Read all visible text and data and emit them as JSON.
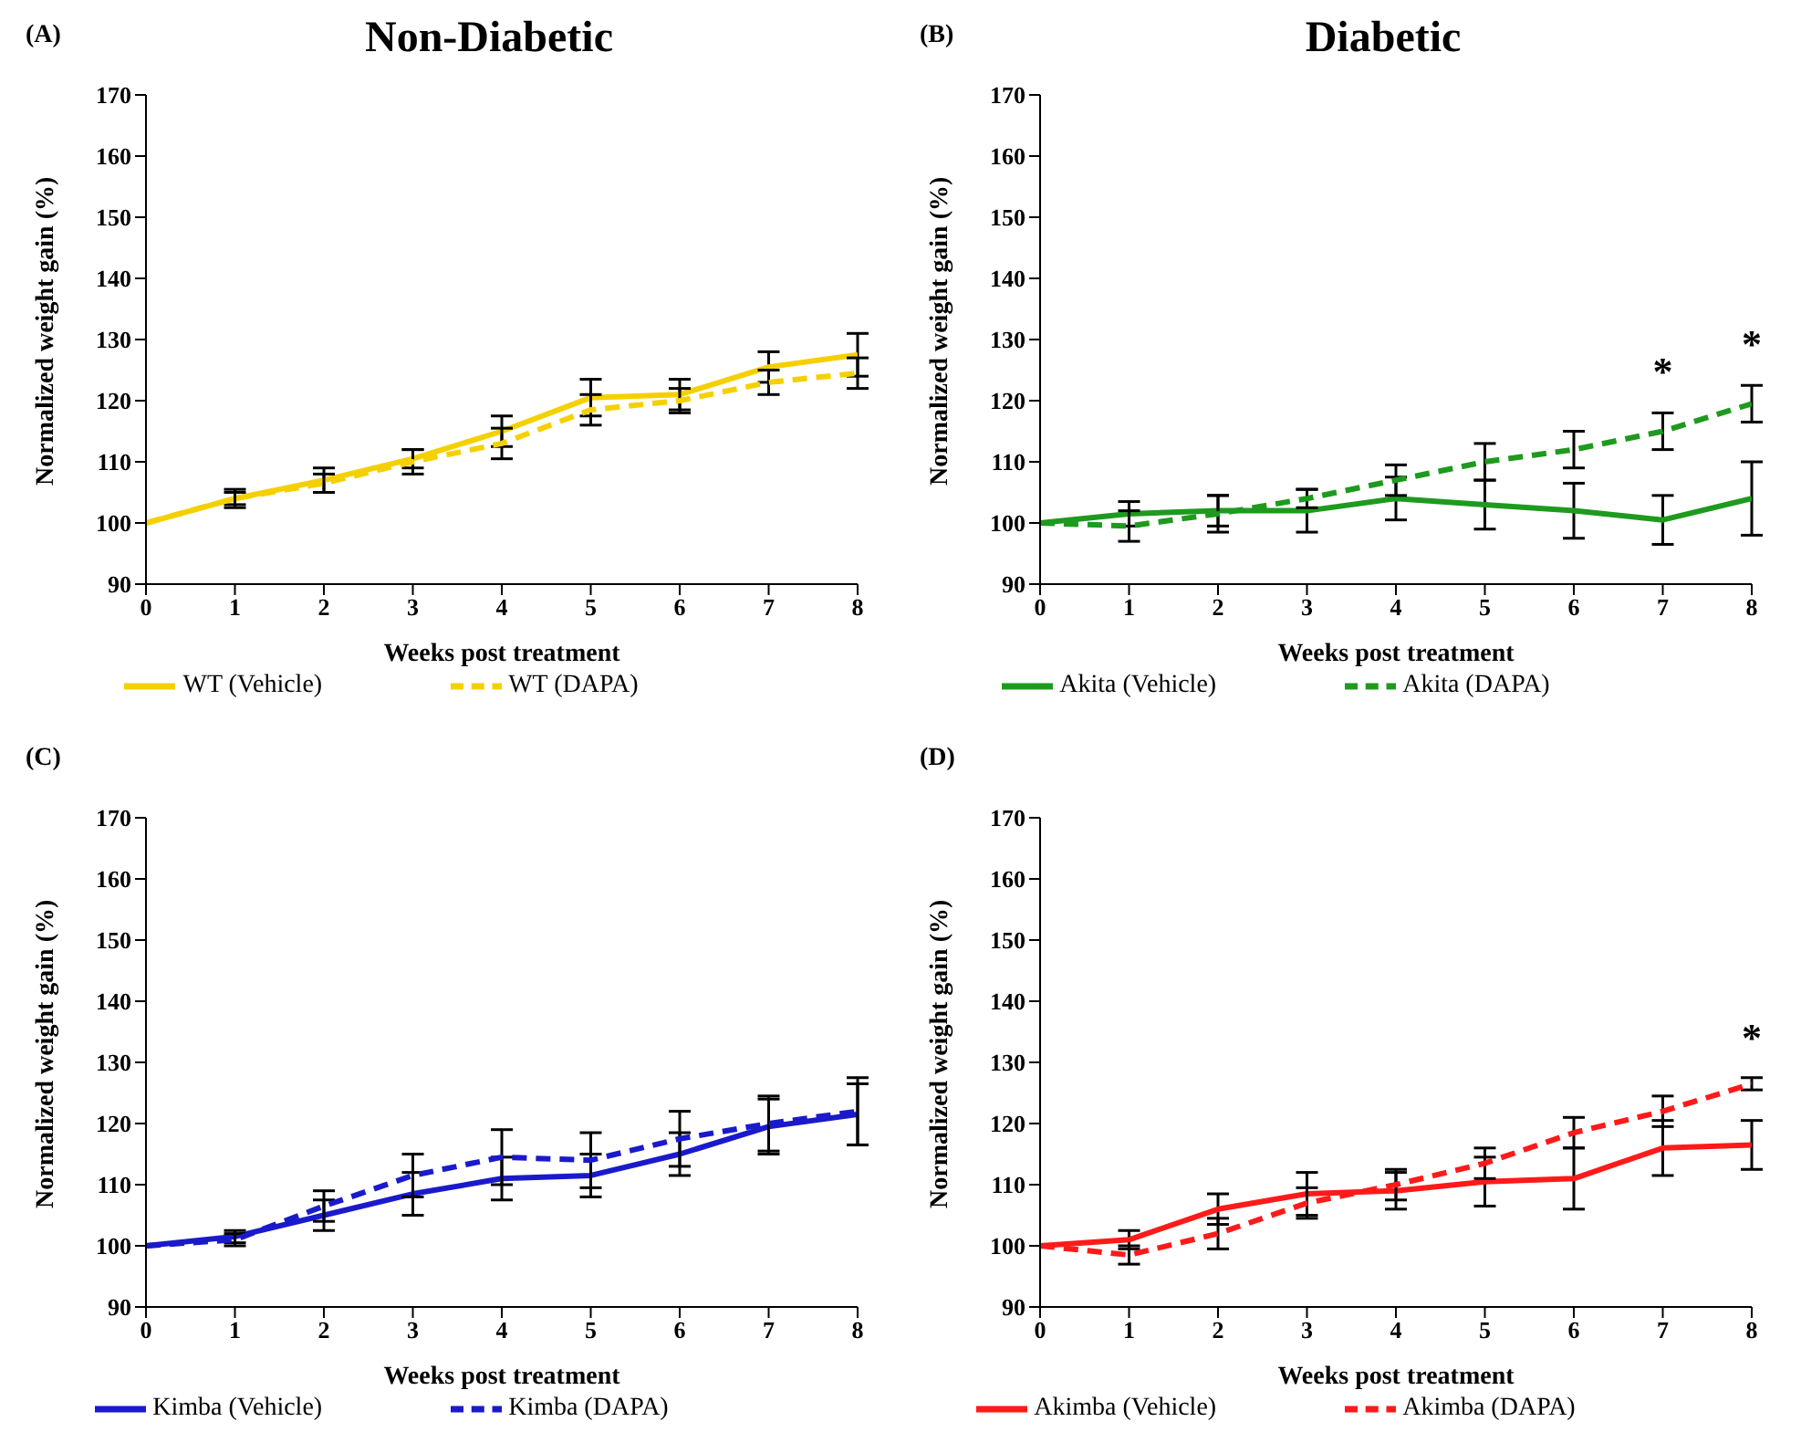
{
  "chart_data": [
    {
      "type": "line",
      "title": "Non-Diabetic",
      "annotations": [
        "(A)"
      ],
      "xlabel": "Weeks post treatment",
      "ylabel": "Normalized weight gain (%)",
      "x": [
        0,
        1,
        2,
        3,
        4,
        5,
        6,
        7,
        8
      ],
      "xlim": [
        0,
        8
      ],
      "xticks": [
        0,
        1,
        2,
        3,
        4,
        5,
        6,
        7,
        8
      ],
      "ylim": [
        90,
        170
      ],
      "yticks": [
        90,
        100,
        110,
        120,
        130,
        140,
        150,
        160,
        170
      ],
      "grid": false,
      "legend": "bottom",
      "marker": "none",
      "series": [
        {
          "name": "WT (Vehicle)",
          "color": "#f5d000",
          "line_style": "solid",
          "values": [
            100,
            104,
            107,
            110.5,
            115,
            120.5,
            121,
            125.5,
            127.5
          ],
          "errors": [
            null,
            1.5,
            2,
            1.5,
            2.5,
            3,
            2.5,
            2.5,
            3.5
          ]
        },
        {
          "name": "WT (DAPA)",
          "color": "#f5d000",
          "line_style": "dashed",
          "values": [
            100,
            104,
            106.5,
            110,
            113,
            118.5,
            120,
            123,
            124.5
          ],
          "errors": [
            null,
            1,
            1.5,
            2,
            2.5,
            2.5,
            2,
            2,
            2.5
          ]
        }
      ]
    },
    {
      "type": "line",
      "title": "Diabetic",
      "annotations": [
        "(B)"
      ],
      "xlabel": "Weeks post treatment",
      "ylabel": "Normalized weight gain (%)",
      "x": [
        0,
        1,
        2,
        3,
        4,
        5,
        6,
        7,
        8
      ],
      "xlim": [
        0,
        8
      ],
      "xticks": [
        0,
        1,
        2,
        3,
        4,
        5,
        6,
        7,
        8
      ],
      "ylim": [
        90,
        170
      ],
      "yticks": [
        90,
        100,
        110,
        120,
        130,
        140,
        150,
        160,
        170
      ],
      "grid": false,
      "legend": "bottom",
      "marker": "none",
      "series": [
        {
          "name": "Akita (Vehicle)",
          "color": "#1e9a1e",
          "line_style": "solid",
          "values": [
            100,
            101.5,
            102,
            102,
            104,
            103,
            102,
            100.5,
            104
          ],
          "errors": [
            null,
            2,
            2.5,
            3.5,
            3.5,
            4,
            4.5,
            4,
            6
          ]
        },
        {
          "name": "Akita (DAPA)",
          "color": "#1e9a1e",
          "line_style": "dashed",
          "values": [
            100,
            99.5,
            101.5,
            104,
            107,
            110,
            112,
            115,
            119.5
          ],
          "errors": [
            null,
            2.5,
            3,
            1.5,
            2.5,
            3,
            3,
            3,
            3
          ],
          "value_labels": [
            null,
            null,
            null,
            null,
            null,
            null,
            null,
            "*",
            "*"
          ]
        }
      ]
    },
    {
      "type": "line",
      "annotations": [
        "(C)"
      ],
      "xlabel": "Weeks post treatment",
      "ylabel": "Normalized weight gain (%)",
      "x": [
        0,
        1,
        2,
        3,
        4,
        5,
        6,
        7,
        8
      ],
      "xlim": [
        0,
        8
      ],
      "xticks": [
        0,
        1,
        2,
        3,
        4,
        5,
        6,
        7,
        8
      ],
      "ylim": [
        90,
        170
      ],
      "yticks": [
        90,
        100,
        110,
        120,
        130,
        140,
        150,
        160,
        170
      ],
      "grid": false,
      "legend": "bottom",
      "marker": "none",
      "series": [
        {
          "name": "Kimba (Vehicle)",
          "color": "#1a1acc",
          "line_style": "solid",
          "values": [
            100,
            101.5,
            105,
            108.5,
            111,
            111.5,
            115,
            119.5,
            121.5
          ],
          "errors": [
            null,
            1,
            2.5,
            3.5,
            3.5,
            3.5,
            3.5,
            4.5,
            5
          ]
        },
        {
          "name": "Kimba (DAPA)",
          "color": "#1a1acc",
          "line_style": "dashed",
          "values": [
            100,
            101,
            106.5,
            111.5,
            114.5,
            114,
            117.5,
            120,
            122
          ],
          "errors": [
            null,
            1,
            2.5,
            3.5,
            4.5,
            4.5,
            4.5,
            4.5,
            5.5
          ]
        }
      ]
    },
    {
      "type": "line",
      "annotations": [
        "(D)"
      ],
      "xlabel": "Weeks post treatment",
      "ylabel": "Normalized weight gain (%)",
      "x": [
        0,
        1,
        2,
        3,
        4,
        5,
        6,
        7,
        8
      ],
      "xlim": [
        0,
        8
      ],
      "xticks": [
        0,
        1,
        2,
        3,
        4,
        5,
        6,
        7,
        8
      ],
      "ylim": [
        90,
        170
      ],
      "yticks": [
        90,
        100,
        110,
        120,
        130,
        140,
        150,
        160,
        170
      ],
      "grid": false,
      "legend": "bottom",
      "marker": "none",
      "series": [
        {
          "name": "Akimba (Vehicle)",
          "color": "#ff1a1a",
          "line_style": "solid",
          "values": [
            100,
            101,
            106,
            108.5,
            109,
            110.5,
            111,
            116,
            116.5
          ],
          "errors": [
            null,
            1.5,
            2.5,
            3.5,
            3,
            4,
            5,
            4.5,
            4
          ]
        },
        {
          "name": "Akimba (DAPA)",
          "color": "#ff1a1a",
          "line_style": "dashed",
          "values": [
            100,
            98.5,
            102,
            107,
            110,
            113.5,
            118.5,
            122,
            126.5
          ],
          "errors": [
            null,
            1.5,
            2.5,
            2.5,
            2.5,
            2.5,
            2.5,
            2.5,
            1
          ],
          "value_labels": [
            null,
            null,
            null,
            null,
            null,
            null,
            null,
            null,
            "*"
          ]
        }
      ]
    }
  ]
}
